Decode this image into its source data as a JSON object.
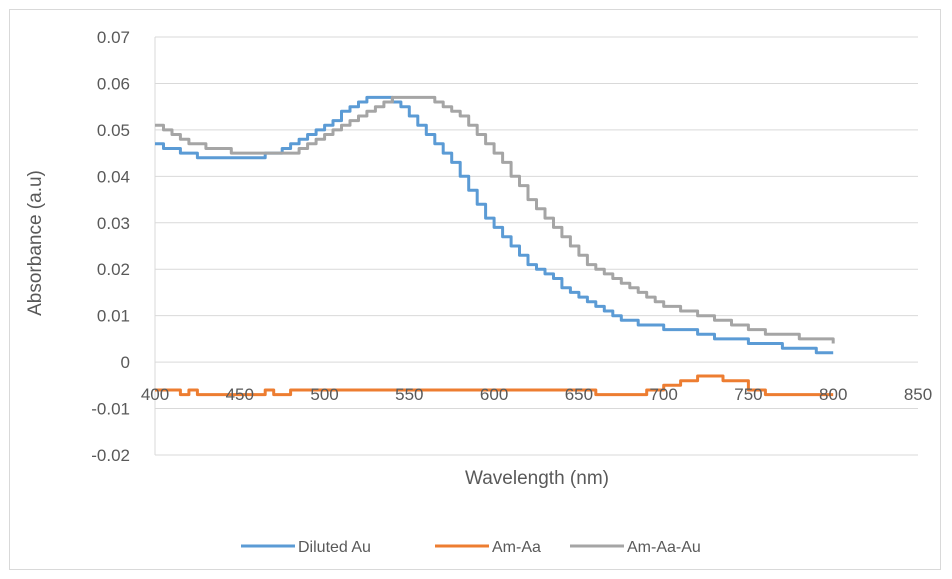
{
  "chart_data": {
    "type": "line",
    "title": "",
    "xlabel": "Wavelength (nm)",
    "ylabel": "Absorbance (a.u)",
    "xlim": [
      400,
      850
    ],
    "ylim": [
      -0.02,
      0.07
    ],
    "x_ticks": [
      400,
      450,
      500,
      550,
      600,
      650,
      700,
      750,
      800,
      850
    ],
    "y_ticks": [
      -0.02,
      -0.01,
      0,
      0.01,
      0.02,
      0.03,
      0.04,
      0.05,
      0.06,
      0.07
    ],
    "y_tick_labels": [
      "-0.02",
      "-0.01",
      "0",
      "0.01",
      "0.02",
      "0.03",
      "0.04",
      "0.05",
      "0.06",
      "0.07"
    ],
    "x_tick_labels": [
      "400",
      "450",
      "500",
      "550",
      "600",
      "650",
      "700",
      "750",
      "800",
      "850"
    ],
    "grid": "horizontal",
    "legend_position": "bottom",
    "series": [
      {
        "name": "Diluted Au",
        "color": "#5b9bd5",
        "points": [
          [
            400,
            0.047
          ],
          [
            405,
            0.046
          ],
          [
            410,
            0.046
          ],
          [
            415,
            0.045
          ],
          [
            420,
            0.045
          ],
          [
            425,
            0.044
          ],
          [
            430,
            0.044
          ],
          [
            440,
            0.044
          ],
          [
            450,
            0.044
          ],
          [
            460,
            0.044
          ],
          [
            465,
            0.045
          ],
          [
            470,
            0.045
          ],
          [
            475,
            0.046
          ],
          [
            480,
            0.047
          ],
          [
            485,
            0.048
          ],
          [
            490,
            0.049
          ],
          [
            495,
            0.05
          ],
          [
            500,
            0.051
          ],
          [
            505,
            0.052
          ],
          [
            510,
            0.054
          ],
          [
            515,
            0.055
          ],
          [
            520,
            0.056
          ],
          [
            525,
            0.057
          ],
          [
            530,
            0.057
          ],
          [
            535,
            0.057
          ],
          [
            540,
            0.056
          ],
          [
            545,
            0.055
          ],
          [
            550,
            0.053
          ],
          [
            555,
            0.051
          ],
          [
            560,
            0.049
          ],
          [
            565,
            0.047
          ],
          [
            570,
            0.045
          ],
          [
            575,
            0.043
          ],
          [
            580,
            0.04
          ],
          [
            585,
            0.037
          ],
          [
            590,
            0.034
          ],
          [
            595,
            0.031
          ],
          [
            600,
            0.029
          ],
          [
            605,
            0.027
          ],
          [
            610,
            0.025
          ],
          [
            615,
            0.023
          ],
          [
            620,
            0.021
          ],
          [
            625,
            0.02
          ],
          [
            630,
            0.019
          ],
          [
            635,
            0.018
          ],
          [
            640,
            0.016
          ],
          [
            645,
            0.015
          ],
          [
            650,
            0.014
          ],
          [
            655,
            0.013
          ],
          [
            660,
            0.012
          ],
          [
            665,
            0.011
          ],
          [
            670,
            0.01
          ],
          [
            675,
            0.009
          ],
          [
            680,
            0.009
          ],
          [
            685,
            0.008
          ],
          [
            690,
            0.008
          ],
          [
            700,
            0.007
          ],
          [
            710,
            0.007
          ],
          [
            720,
            0.006
          ],
          [
            730,
            0.005
          ],
          [
            740,
            0.005
          ],
          [
            750,
            0.004
          ],
          [
            760,
            0.004
          ],
          [
            770,
            0.003
          ],
          [
            780,
            0.003
          ],
          [
            790,
            0.002
          ],
          [
            800,
            0.002
          ]
        ]
      },
      {
        "name": "Am-Aa",
        "color": "#ed7d31",
        "points": [
          [
            400,
            -0.006
          ],
          [
            410,
            -0.006
          ],
          [
            415,
            -0.007
          ],
          [
            420,
            -0.006
          ],
          [
            425,
            -0.007
          ],
          [
            430,
            -0.007
          ],
          [
            450,
            -0.007
          ],
          [
            460,
            -0.007
          ],
          [
            465,
            -0.006
          ],
          [
            470,
            -0.007
          ],
          [
            480,
            -0.006
          ],
          [
            500,
            -0.006
          ],
          [
            550,
            -0.006
          ],
          [
            600,
            -0.006
          ],
          [
            650,
            -0.006
          ],
          [
            660,
            -0.007
          ],
          [
            680,
            -0.007
          ],
          [
            690,
            -0.006
          ],
          [
            700,
            -0.005
          ],
          [
            710,
            -0.004
          ],
          [
            720,
            -0.003
          ],
          [
            730,
            -0.003
          ],
          [
            735,
            -0.004
          ],
          [
            745,
            -0.004
          ],
          [
            750,
            -0.006
          ],
          [
            760,
            -0.007
          ],
          [
            780,
            -0.007
          ],
          [
            800,
            -0.007
          ]
        ]
      },
      {
        "name": "Am-Aa-Au",
        "color": "#a5a5a5",
        "points": [
          [
            400,
            0.051
          ],
          [
            405,
            0.05
          ],
          [
            410,
            0.049
          ],
          [
            415,
            0.048
          ],
          [
            420,
            0.047
          ],
          [
            425,
            0.047
          ],
          [
            430,
            0.046
          ],
          [
            440,
            0.046
          ],
          [
            445,
            0.045
          ],
          [
            460,
            0.045
          ],
          [
            470,
            0.045
          ],
          [
            480,
            0.045
          ],
          [
            485,
            0.046
          ],
          [
            490,
            0.047
          ],
          [
            495,
            0.048
          ],
          [
            500,
            0.049
          ],
          [
            505,
            0.05
          ],
          [
            510,
            0.051
          ],
          [
            515,
            0.052
          ],
          [
            520,
            0.053
          ],
          [
            525,
            0.054
          ],
          [
            530,
            0.055
          ],
          [
            535,
            0.056
          ],
          [
            540,
            0.057
          ],
          [
            550,
            0.057
          ],
          [
            560,
            0.057
          ],
          [
            565,
            0.056
          ],
          [
            570,
            0.055
          ],
          [
            575,
            0.054
          ],
          [
            580,
            0.053
          ],
          [
            585,
            0.051
          ],
          [
            590,
            0.049
          ],
          [
            595,
            0.047
          ],
          [
            600,
            0.045
          ],
          [
            605,
            0.043
          ],
          [
            610,
            0.04
          ],
          [
            615,
            0.038
          ],
          [
            620,
            0.035
          ],
          [
            625,
            0.033
          ],
          [
            630,
            0.031
          ],
          [
            635,
            0.029
          ],
          [
            640,
            0.027
          ],
          [
            645,
            0.025
          ],
          [
            650,
            0.023
          ],
          [
            655,
            0.021
          ],
          [
            660,
            0.02
          ],
          [
            665,
            0.019
          ],
          [
            670,
            0.018
          ],
          [
            675,
            0.017
          ],
          [
            680,
            0.016
          ],
          [
            685,
            0.015
          ],
          [
            690,
            0.014
          ],
          [
            695,
            0.013
          ],
          [
            700,
            0.012
          ],
          [
            710,
            0.011
          ],
          [
            720,
            0.01
          ],
          [
            730,
            0.009
          ],
          [
            740,
            0.008
          ],
          [
            750,
            0.007
          ],
          [
            760,
            0.006
          ],
          [
            770,
            0.006
          ],
          [
            780,
            0.005
          ],
          [
            790,
            0.005
          ],
          [
            800,
            0.004
          ]
        ]
      }
    ]
  }
}
